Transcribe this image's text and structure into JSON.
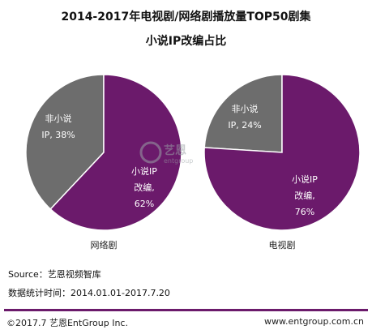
{
  "title_line1": "2014-2017年电视剧/网络剧播放量TOP50剧集",
  "title_line2": "小说IP改编占比",
  "chart_data": [
    {
      "type": "pie",
      "name": "网络剧",
      "slices": [
        {
          "label_lines": [
            "非小说",
            "IP, 38%"
          ],
          "value": 38,
          "color": "#6d6d6d"
        },
        {
          "label_lines": [
            "小说IP",
            "改编,",
            "62%"
          ],
          "value": 62,
          "color": "#6b1a6b"
        }
      ]
    },
    {
      "type": "pie",
      "name": "电视剧",
      "slices": [
        {
          "label_lines": [
            "非小说",
            "IP, 24%"
          ],
          "value": 24,
          "color": "#6d6d6d"
        },
        {
          "label_lines": [
            "小说IP",
            "改编,",
            "76%"
          ],
          "value": 76,
          "color": "#6b1a6b"
        }
      ]
    }
  ],
  "watermark": {
    "text_cn": "艺恩",
    "text_en": "entgroup"
  },
  "footnotes": {
    "source": "Source：艺恩视频智库",
    "period": "数据统计时间：2014.01.01-2017.7.20"
  },
  "footer": {
    "copyright": "©2017.7 艺恩EntGroup Inc.",
    "website": "www.entgroup.com.cn"
  },
  "colors": {
    "accent": "#6b1a6b",
    "gray_slice": "#6d6d6d"
  }
}
